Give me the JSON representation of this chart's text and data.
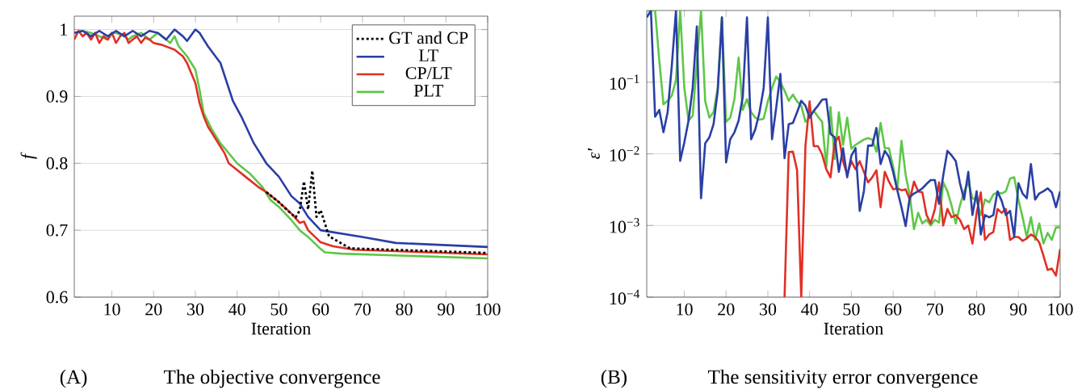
{
  "chart_data": [
    {
      "type": "line",
      "title": "The objective convergence",
      "annotations": [
        "(A)"
      ],
      "xlabel": "Iteration",
      "ylabel": "f",
      "xlim": [
        1,
        100
      ],
      "ylim": [
        0.6,
        1.02
      ],
      "xticks": [
        10,
        20,
        30,
        40,
        50,
        60,
        70,
        80,
        90,
        100
      ],
      "yticks": [
        0.6,
        0.7,
        0.8,
        0.9,
        1
      ],
      "grid": "y",
      "legend": "top right",
      "series": [
        {
          "name": "GT and CP",
          "color": "#000000",
          "line_style": "dotted",
          "x": [
            47,
            50,
            52,
            54,
            55,
            56,
            57,
            58,
            59,
            60,
            62,
            67,
            100
          ],
          "values": [
            0.757,
            0.742,
            0.73,
            0.719,
            0.73,
            0.773,
            0.731,
            0.789,
            0.72,
            0.73,
            0.691,
            0.673,
            0.666
          ]
        },
        {
          "name": "LT",
          "color": "#2a3fa5",
          "x": [
            1,
            3,
            5,
            7,
            9,
            11,
            13,
            15,
            17,
            19,
            21,
            23,
            25,
            27,
            28,
            30,
            31,
            33,
            36,
            39,
            41,
            44,
            47,
            50,
            53,
            55,
            57,
            60,
            70,
            78,
            100
          ],
          "values": [
            0.995,
            0.998,
            0.99,
            0.998,
            0.99,
            0.998,
            0.99,
            0.998,
            0.99,
            0.998,
            0.995,
            0.985,
            1.0,
            0.99,
            0.983,
            1.0,
            0.995,
            0.975,
            0.95,
            0.893,
            0.87,
            0.83,
            0.8,
            0.78,
            0.751,
            0.74,
            0.72,
            0.7,
            0.69,
            0.681,
            0.675
          ]
        },
        {
          "name": "CP/LT",
          "color": "#e03025",
          "x": [
            1,
            2,
            3,
            4,
            5,
            6,
            7,
            8,
            9,
            10,
            11,
            12,
            13,
            14,
            15,
            16,
            17,
            18,
            19,
            20,
            22,
            25,
            27,
            28,
            29,
            30,
            31,
            32,
            33,
            35,
            37,
            38,
            40,
            42,
            45,
            47,
            50,
            53,
            55,
            56,
            57,
            60,
            63,
            68,
            100
          ],
          "values": [
            0.985,
            0.998,
            0.99,
            0.995,
            0.985,
            0.995,
            0.98,
            0.99,
            0.985,
            0.995,
            0.98,
            0.99,
            0.995,
            0.98,
            0.985,
            0.99,
            0.98,
            0.988,
            0.985,
            0.98,
            0.977,
            0.97,
            0.96,
            0.95,
            0.935,
            0.92,
            0.89,
            0.87,
            0.855,
            0.835,
            0.815,
            0.8,
            0.79,
            0.78,
            0.765,
            0.757,
            0.742,
            0.725,
            0.711,
            0.713,
            0.7,
            0.682,
            0.676,
            0.671,
            0.664
          ]
        },
        {
          "name": "PLT",
          "color": "#5ec748",
          "x": [
            1,
            3,
            5,
            7,
            9,
            10,
            11,
            13,
            14,
            15,
            17,
            18,
            19,
            20,
            21,
            22,
            23,
            24,
            25,
            26,
            28,
            30,
            31,
            32,
            34,
            36,
            38,
            40,
            43,
            46,
            48,
            50,
            53,
            55,
            57,
            60,
            61,
            65,
            100
          ],
          "values": [
            0.995,
            0.998,
            0.995,
            0.99,
            0.985,
            0.995,
            0.995,
            0.99,
            0.985,
            0.99,
            0.995,
            0.99,
            0.985,
            0.99,
            0.995,
            0.99,
            0.985,
            0.98,
            0.99,
            0.975,
            0.96,
            0.94,
            0.91,
            0.875,
            0.85,
            0.83,
            0.815,
            0.8,
            0.785,
            0.765,
            0.745,
            0.735,
            0.715,
            0.7,
            0.69,
            0.672,
            0.667,
            0.665,
            0.658
          ]
        }
      ]
    },
    {
      "type": "line",
      "title": "The sensitivity error convergence",
      "annotations": [
        "(B)"
      ],
      "xlabel": "Iteration",
      "ylabel": "ε′",
      "log": true,
      "xlim": [
        1,
        100
      ],
      "ylim": [
        0.0001,
        1
      ],
      "xticks": [
        10,
        20,
        30,
        40,
        50,
        60,
        70,
        80,
        90,
        100
      ],
      "yticks": [
        {
          "value": 0.0001,
          "label": "10$^{−4}$"
        },
        {
          "value": 0.001,
          "label": "10$^{−3}$"
        },
        {
          "value": 0.01,
          "label": "10$^{−2}$"
        },
        {
          "value": 0.1,
          "label": "10$^{−1}$"
        }
      ],
      "grid": "y",
      "x": [
        1,
        2,
        3,
        4,
        5,
        6,
        7,
        8,
        9,
        10,
        11,
        12,
        13,
        14,
        15,
        16,
        17,
        18,
        19,
        20,
        21,
        22,
        23,
        24,
        25,
        26,
        27,
        28,
        29,
        30,
        31,
        32,
        33,
        34,
        35,
        36,
        37,
        38,
        39,
        40,
        41,
        42,
        43,
        44,
        45,
        46,
        47,
        48,
        49,
        50,
        51,
        52,
        53,
        54,
        55,
        56,
        57,
        58,
        59,
        60,
        61,
        62,
        63,
        64,
        65,
        66,
        67,
        68,
        69,
        70,
        71,
        72,
        73,
        74,
        75,
        76,
        77,
        78,
        79,
        80,
        81,
        82,
        83,
        84,
        85,
        86,
        87,
        88,
        89,
        90,
        91,
        92,
        93,
        94,
        95,
        96,
        97,
        98,
        99,
        100
      ],
      "series": [
        {
          "color": "#2a3fa5",
          "values": [
            0.8,
            1,
            0.033,
            0.041,
            0.02,
            0.038,
            0.17,
            1,
            0.008,
            0.0145,
            0.029,
            0.083,
            0.6,
            0.0024,
            0.014,
            0.017,
            0.026,
            0.076,
            0.8,
            0.0076,
            0.016,
            0.02,
            0.029,
            0.063,
            0.8,
            0.016,
            0.022,
            0.038,
            0.083,
            0.8,
            0.016,
            0.044,
            0.13,
            0.0087,
            0.026,
            0.027,
            0.038,
            0.055,
            0.047,
            0.032,
            0.04,
            0.047,
            0.057,
            0.058,
            0.019,
            0.017,
            0.0056,
            0.012,
            0.0047,
            0.0094,
            0.012,
            0.0016,
            0.003,
            0.013,
            0.013,
            0.023,
            0.0072,
            0.011,
            0.0091,
            0.0056,
            0.0031,
            0.0018,
            0.00098,
            0.0025,
            0.0028,
            0.003,
            0.0033,
            0.0038,
            0.0043,
            0.0043,
            0.002,
            0.005,
            0.011,
            0.0095,
            0.0079,
            0.0039,
            0.0023,
            0.0056,
            0.0014,
            0.003,
            0.00075,
            0.0014,
            0.0013,
            0.0014,
            0.003,
            0.0022,
            0.0014,
            0.0016,
            0.0007,
            0.0039,
            0.0028,
            0.0024,
            0.0072,
            0.0023,
            0.0028,
            0.003,
            0.0033,
            0.0029,
            0.0018,
            0.003
          ]
        },
        {
          "color": "#e03025",
          "x": [
            34,
            35,
            36,
            37,
            38,
            39,
            40,
            41,
            42,
            43,
            44,
            45,
            46,
            47,
            48,
            49,
            50,
            51,
            52,
            53,
            54,
            55,
            56,
            57,
            58,
            59,
            60,
            61,
            62,
            63,
            64,
            65,
            66,
            67,
            68,
            69,
            70,
            71,
            72,
            73,
            74,
            75,
            76,
            77,
            78,
            79,
            80,
            81,
            82,
            83,
            84,
            85,
            86,
            87,
            88,
            89,
            90,
            91,
            92,
            93,
            94,
            95,
            96,
            97,
            98,
            99,
            100
          ],
          "values": [
            0.0001,
            0.0106,
            0.0107,
            0.0059,
            0.0001,
            0.0128,
            0.054,
            0.0128,
            0.0128,
            0.0098,
            0.0061,
            0.0047,
            0.0145,
            0.0173,
            0.0079,
            0.0051,
            0.0079,
            0.0061,
            0.0079,
            0.0056,
            0.004,
            0.0047,
            0.0059,
            0.0018,
            0.0056,
            0.0041,
            0.0032,
            0.0033,
            0.0031,
            0.0032,
            0.0023,
            0.0041,
            0.003,
            0.0029,
            0.0014,
            0.00107,
            0.0017,
            0.004,
            0.001,
            0.0017,
            0.0013,
            0.0014,
            0.0012,
            0.00089,
            0.001,
            0.00056,
            0.0015,
            0.0029,
            0.00063,
            0.00075,
            0.00081,
            0.0017,
            0.0015,
            0.0017,
            0.00063,
            0.00069,
            0.00069,
            0.00061,
            0.00066,
            0.00075,
            0.00069,
            0.00058,
            0.00038,
            0.00024,
            0.00025,
            0.0002,
            0.00047
          ]
        },
        {
          "color": "#5ec748",
          "values": [
            1,
            1,
            1,
            0.2,
            0.049,
            0.055,
            0.065,
            0.107,
            1,
            0.083,
            0.029,
            0.034,
            0.19,
            1,
            0.054,
            0.032,
            0.038,
            0.083,
            0.8,
            0.028,
            0.032,
            0.058,
            0.22,
            0.041,
            0.058,
            0.038,
            0.032,
            0.03,
            0.031,
            0.054,
            0.083,
            0.12,
            0.1,
            0.076,
            0.055,
            0.067,
            0.054,
            0.047,
            0.028,
            0.032,
            0.04,
            0.033,
            0.028,
            0.0066,
            0.045,
            0.0084,
            0.038,
            0.0133,
            0.032,
            0.0118,
            0.0133,
            0.0145,
            0.0158,
            0.0166,
            0.0158,
            0.0107,
            0.027,
            0.012,
            0.012,
            0.0066,
            0.0032,
            0.0152,
            0.0051,
            0.0026,
            0.00089,
            0.0015,
            0.00107,
            0.0012,
            0.001,
            0.0012,
            0.0011,
            0.004,
            0.003,
            0.0019,
            0.00107,
            0.0019,
            0.003,
            0.004,
            0.0024,
            0.0023,
            0.0014,
            0.0023,
            0.0021,
            0.0027,
            0.0029,
            0.0028,
            0.003,
            0.0045,
            0.0047,
            0.0023,
            0.0013,
            0.00069,
            0.0013,
            0.00063,
            0.00107,
            0.00056,
            0.00079,
            0.00063,
            0.00094,
            0.00094
          ]
        }
      ]
    }
  ]
}
